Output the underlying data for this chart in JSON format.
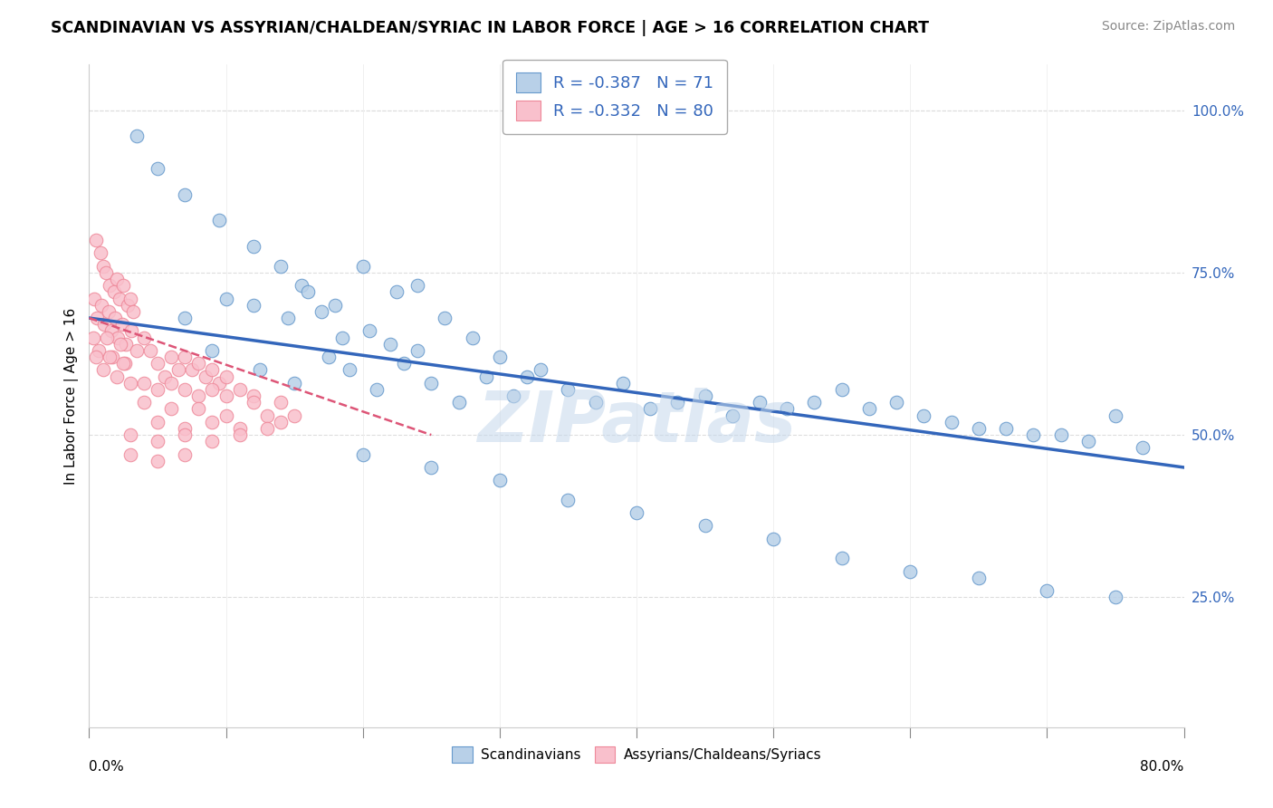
{
  "title": "SCANDINAVIAN VS ASSYRIAN/CHALDEAN/SYRIAC IN LABOR FORCE | AGE > 16 CORRELATION CHART",
  "source": "Source: ZipAtlas.com",
  "ylabel": "In Labor Force | Age > 16",
  "r_blue": -0.387,
  "n_blue": 71,
  "r_pink": -0.332,
  "n_pink": 80,
  "xlim": [
    0.0,
    80.0
  ],
  "ylim": [
    5.0,
    107.0
  ],
  "yticks": [
    25.0,
    50.0,
    75.0,
    100.0
  ],
  "ytick_labels": [
    "25.0%",
    "50.0%",
    "75.0%",
    "100.0%"
  ],
  "color_blue": "#b8d0e8",
  "color_pink": "#f9c0cc",
  "color_blue_edge": "#6699cc",
  "color_pink_edge": "#ee8899",
  "color_trend_blue": "#3366bb",
  "color_trend_pink": "#dd5577",
  "watermark": "ZIPatlas",
  "legend_label_blue": "Scandinavians",
  "legend_label_pink": "Assyrians/Chaldeans/Syriacs",
  "blue_scatter": [
    [
      3.5,
      96.0
    ],
    [
      5.0,
      91.0
    ],
    [
      7.0,
      87.0
    ],
    [
      9.5,
      83.0
    ],
    [
      12.0,
      79.0
    ],
    [
      14.0,
      76.0
    ],
    [
      15.5,
      73.0
    ],
    [
      18.0,
      70.0
    ],
    [
      20.0,
      76.0
    ],
    [
      22.5,
      72.0
    ],
    [
      24.0,
      73.0
    ],
    [
      7.0,
      68.0
    ],
    [
      10.0,
      71.0
    ],
    [
      12.0,
      70.0
    ],
    [
      14.5,
      68.0
    ],
    [
      16.0,
      72.0
    ],
    [
      17.0,
      69.0
    ],
    [
      18.5,
      65.0
    ],
    [
      20.5,
      66.0
    ],
    [
      22.0,
      64.0
    ],
    [
      24.0,
      63.0
    ],
    [
      26.0,
      68.0
    ],
    [
      28.0,
      65.0
    ],
    [
      30.0,
      62.0
    ],
    [
      32.0,
      59.0
    ],
    [
      9.0,
      63.0
    ],
    [
      12.5,
      60.0
    ],
    [
      15.0,
      58.0
    ],
    [
      17.5,
      62.0
    ],
    [
      19.0,
      60.0
    ],
    [
      21.0,
      57.0
    ],
    [
      23.0,
      61.0
    ],
    [
      25.0,
      58.0
    ],
    [
      27.0,
      55.0
    ],
    [
      29.0,
      59.0
    ],
    [
      31.0,
      56.0
    ],
    [
      33.0,
      60.0
    ],
    [
      35.0,
      57.0
    ],
    [
      37.0,
      55.0
    ],
    [
      39.0,
      58.0
    ],
    [
      41.0,
      54.0
    ],
    [
      43.0,
      55.0
    ],
    [
      45.0,
      56.0
    ],
    [
      47.0,
      53.0
    ],
    [
      49.0,
      55.0
    ],
    [
      51.0,
      54.0
    ],
    [
      53.0,
      55.0
    ],
    [
      55.0,
      57.0
    ],
    [
      57.0,
      54.0
    ],
    [
      59.0,
      55.0
    ],
    [
      61.0,
      53.0
    ],
    [
      63.0,
      52.0
    ],
    [
      65.0,
      51.0
    ],
    [
      67.0,
      51.0
    ],
    [
      69.0,
      50.0
    ],
    [
      71.0,
      50.0
    ],
    [
      73.0,
      49.0
    ],
    [
      75.0,
      53.0
    ],
    [
      77.0,
      48.0
    ],
    [
      20.0,
      47.0
    ],
    [
      25.0,
      45.0
    ],
    [
      30.0,
      43.0
    ],
    [
      35.0,
      40.0
    ],
    [
      40.0,
      38.0
    ],
    [
      45.0,
      36.0
    ],
    [
      50.0,
      34.0
    ],
    [
      55.0,
      31.0
    ],
    [
      60.0,
      29.0
    ],
    [
      65.0,
      28.0
    ],
    [
      70.0,
      26.0
    ],
    [
      75.0,
      25.0
    ]
  ],
  "pink_scatter": [
    [
      0.5,
      80.0
    ],
    [
      0.8,
      78.0
    ],
    [
      1.0,
      76.0
    ],
    [
      1.2,
      75.0
    ],
    [
      1.5,
      73.0
    ],
    [
      1.8,
      72.0
    ],
    [
      2.0,
      74.0
    ],
    [
      2.2,
      71.0
    ],
    [
      2.5,
      73.0
    ],
    [
      2.8,
      70.0
    ],
    [
      3.0,
      71.0
    ],
    [
      3.2,
      69.0
    ],
    [
      0.4,
      71.0
    ],
    [
      0.6,
      68.0
    ],
    [
      0.9,
      70.0
    ],
    [
      1.1,
      67.0
    ],
    [
      1.4,
      69.0
    ],
    [
      1.6,
      66.0
    ],
    [
      1.9,
      68.0
    ],
    [
      2.1,
      65.0
    ],
    [
      2.4,
      67.0
    ],
    [
      2.7,
      64.0
    ],
    [
      3.1,
      66.0
    ],
    [
      0.3,
      65.0
    ],
    [
      0.7,
      63.0
    ],
    [
      1.3,
      65.0
    ],
    [
      1.7,
      62.0
    ],
    [
      2.3,
      64.0
    ],
    [
      2.6,
      61.0
    ],
    [
      3.5,
      63.0
    ],
    [
      0.5,
      62.0
    ],
    [
      1.0,
      60.0
    ],
    [
      1.5,
      62.0
    ],
    [
      2.0,
      59.0
    ],
    [
      2.5,
      61.0
    ],
    [
      3.0,
      58.0
    ],
    [
      4.0,
      65.0
    ],
    [
      4.5,
      63.0
    ],
    [
      5.0,
      61.0
    ],
    [
      5.5,
      59.0
    ],
    [
      6.0,
      62.0
    ],
    [
      6.5,
      60.0
    ],
    [
      7.0,
      62.0
    ],
    [
      7.5,
      60.0
    ],
    [
      8.0,
      61.0
    ],
    [
      8.5,
      59.0
    ],
    [
      9.0,
      60.0
    ],
    [
      9.5,
      58.0
    ],
    [
      10.0,
      59.0
    ],
    [
      4.0,
      58.0
    ],
    [
      5.0,
      57.0
    ],
    [
      6.0,
      58.0
    ],
    [
      7.0,
      57.0
    ],
    [
      8.0,
      56.0
    ],
    [
      9.0,
      57.0
    ],
    [
      10.0,
      56.0
    ],
    [
      11.0,
      57.0
    ],
    [
      12.0,
      56.0
    ],
    [
      4.0,
      55.0
    ],
    [
      6.0,
      54.0
    ],
    [
      8.0,
      54.0
    ],
    [
      10.0,
      53.0
    ],
    [
      12.0,
      55.0
    ],
    [
      14.0,
      55.0
    ],
    [
      5.0,
      52.0
    ],
    [
      7.0,
      51.0
    ],
    [
      9.0,
      52.0
    ],
    [
      11.0,
      51.0
    ],
    [
      13.0,
      53.0
    ],
    [
      15.0,
      53.0
    ],
    [
      3.0,
      50.0
    ],
    [
      5.0,
      49.0
    ],
    [
      7.0,
      50.0
    ],
    [
      9.0,
      49.0
    ],
    [
      11.0,
      50.0
    ],
    [
      13.0,
      51.0
    ],
    [
      3.0,
      47.0
    ],
    [
      5.0,
      46.0
    ],
    [
      7.0,
      47.0
    ],
    [
      14.0,
      52.0
    ]
  ]
}
